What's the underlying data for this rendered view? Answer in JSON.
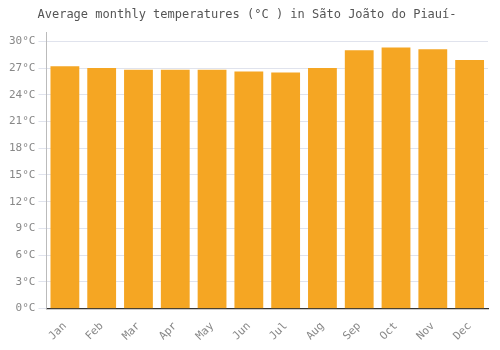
{
  "chart_data": {
    "type": "bar",
    "title": "Average monthly temperatures (°C ) in Sãto Joãto do Piauí-",
    "categories": [
      "Jan",
      "Feb",
      "Mar",
      "Apr",
      "May",
      "Jun",
      "Jul",
      "Aug",
      "Sep",
      "Oct",
      "Nov",
      "Dec"
    ],
    "values": [
      27.2,
      27.0,
      26.8,
      26.8,
      26.8,
      26.6,
      26.5,
      27.0,
      29.0,
      29.3,
      29.1,
      27.9
    ],
    "color": "#F5A623",
    "ylim": [
      0,
      31
    ],
    "yticks": [
      {
        "value": 0,
        "label": "0°C"
      },
      {
        "value": 3,
        "label": "3°C"
      },
      {
        "value": 6,
        "label": "6°C"
      },
      {
        "value": 9,
        "label": "9°C"
      },
      {
        "value": 12,
        "label": "12°C"
      },
      {
        "value": 15,
        "label": "15°C"
      },
      {
        "value": 18,
        "label": "18°C"
      },
      {
        "value": 21,
        "label": "21°C"
      },
      {
        "value": 24,
        "label": "24°C"
      },
      {
        "value": 27,
        "label": "27°C"
      },
      {
        "value": 30,
        "label": "30°C"
      }
    ],
    "grid": true
  }
}
